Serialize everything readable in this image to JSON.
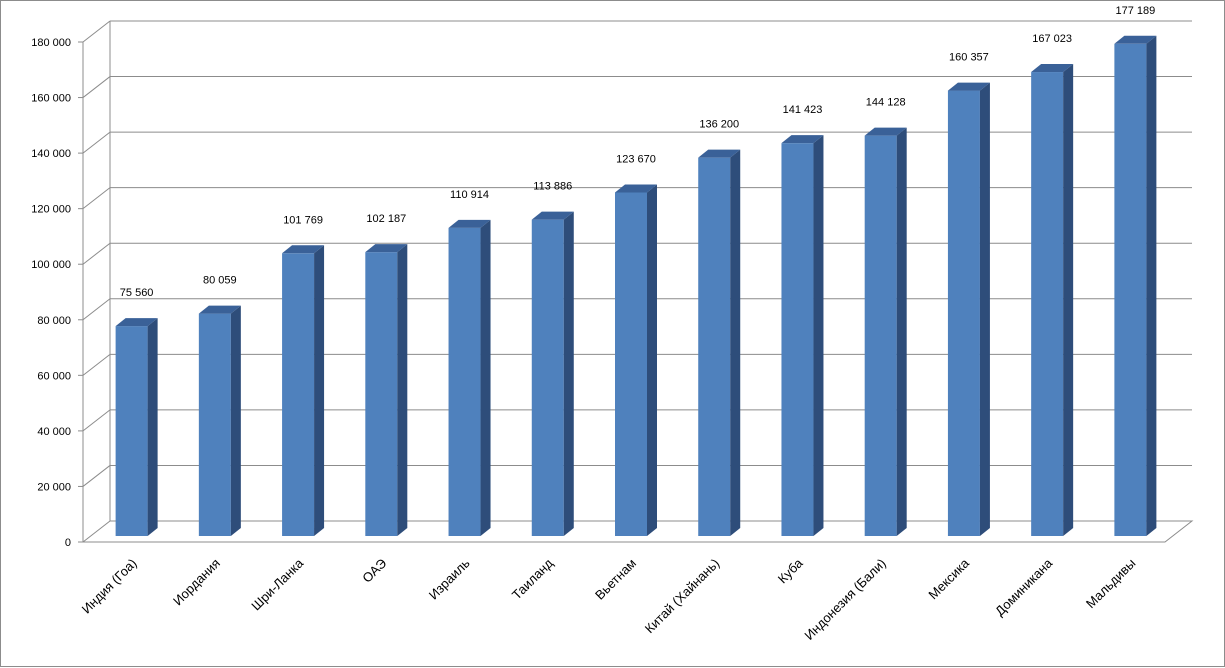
{
  "chart_data": {
    "type": "bar",
    "style": "3d-column",
    "categories": [
      "Индия (Гоа)",
      "Иордания",
      "Шри-Ланка",
      "ОАЭ",
      "Израиль",
      "Таиланд",
      "Вьетнам",
      "Китай (Хайнань)",
      "Куба",
      "Индонезия (Бали)",
      "Мексика",
      "Доминикана",
      "Мальдивы"
    ],
    "values": [
      75560,
      80059,
      101769,
      102187,
      110914,
      113886,
      123670,
      136200,
      141423,
      144128,
      160357,
      167023,
      177189
    ],
    "data_labels": [
      "75 560",
      "80 059",
      "101 769",
      "102 187",
      "110 914",
      "113 886",
      "123 670",
      "136 200",
      "141 423",
      "144 128",
      "160 357",
      "167 023",
      "177 189"
    ],
    "y_ticks": [
      0,
      20000,
      40000,
      60000,
      80000,
      100000,
      120000,
      140000,
      160000,
      180000
    ],
    "y_tick_labels": [
      "0",
      "20 000",
      "40 000",
      "60 000",
      "80 000",
      "100 000",
      "120 000",
      "140 000",
      "160 000",
      "180 000"
    ],
    "ylim": [
      0,
      180000
    ],
    "title": "",
    "xlabel": "",
    "ylabel": "",
    "grid": true,
    "legend": "none",
    "colors": {
      "bar_front": "#4f81bd",
      "bar_side": "#2e4d7a",
      "bar_top": "#3a6198",
      "grid": "#8c8c8c"
    }
  }
}
